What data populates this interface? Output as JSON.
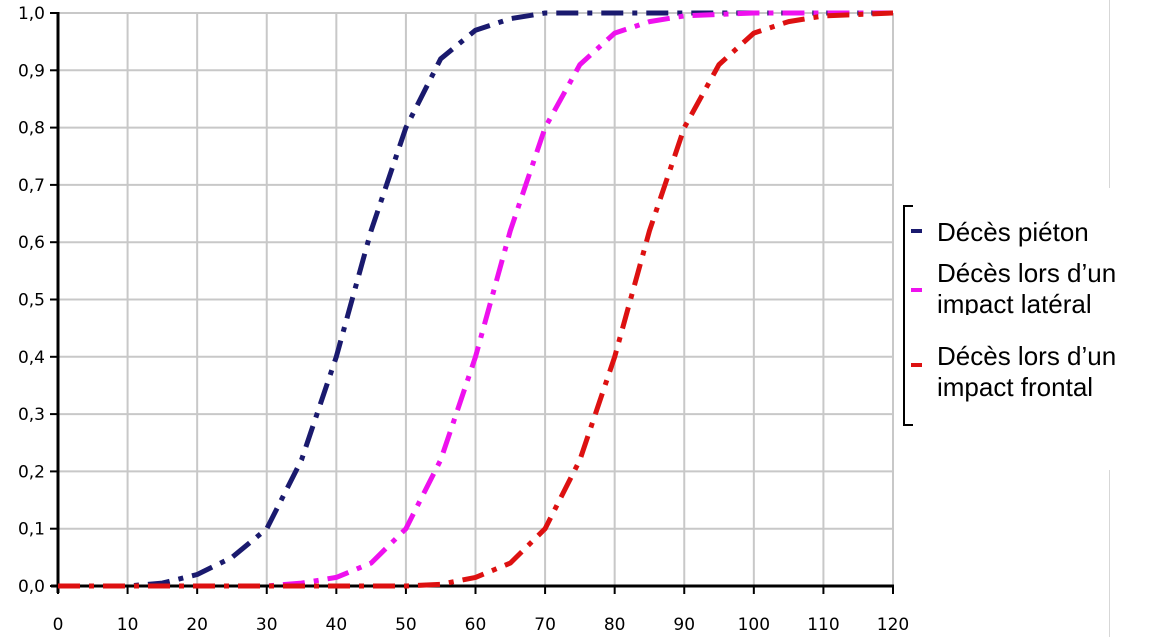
{
  "chart_data": {
    "type": "line",
    "title": "",
    "xlabel": "",
    "ylabel": "",
    "xlim": [
      0,
      120
    ],
    "ylim": [
      0,
      1
    ],
    "grid": true,
    "legend_position": "right",
    "x_ticks": [
      "0",
      "10",
      "20",
      "30",
      "40",
      "50",
      "60",
      "70",
      "80",
      "90",
      "100",
      "110",
      "120"
    ],
    "y_ticks": [
      "0,0",
      "0,1",
      "0,2",
      "0,3",
      "0,4",
      "0,5",
      "0,6",
      "0,7",
      "0,8",
      "0,9",
      "1,0"
    ],
    "series": [
      {
        "name": "Décès piéton",
        "name_lines": [
          "Décès piéton"
        ],
        "color": "#1a1a6e",
        "x": [
          0,
          10,
          15,
          20,
          25,
          30,
          35,
          40,
          45,
          50,
          55,
          60,
          65,
          70,
          80,
          90,
          100,
          110,
          120
        ],
        "y": [
          0.0,
          0.0,
          0.005,
          0.02,
          0.05,
          0.1,
          0.22,
          0.4,
          0.62,
          0.8,
          0.92,
          0.97,
          0.99,
          1.0,
          1.0,
          1.0,
          1.0,
          1.0,
          1.0
        ]
      },
      {
        "name": "Décès lors d’un impact latéral",
        "name_lines": [
          "Décès lors d’un",
          "impact latéral"
        ],
        "color": "#ee11ee",
        "x": [
          0,
          10,
          20,
          30,
          35,
          40,
          45,
          50,
          55,
          60,
          65,
          70,
          75,
          80,
          85,
          90,
          100,
          110,
          120
        ],
        "y": [
          0.0,
          0.0,
          0.0,
          0.0,
          0.005,
          0.015,
          0.04,
          0.1,
          0.22,
          0.4,
          0.62,
          0.8,
          0.91,
          0.965,
          0.985,
          0.995,
          1.0,
          1.0,
          1.0
        ]
      },
      {
        "name": "Décès lors d’un impact frontal",
        "name_lines": [
          "Décès lors d’un",
          "impact frontal"
        ],
        "color": "#dd1111",
        "x": [
          0,
          10,
          20,
          30,
          40,
          50,
          55,
          60,
          65,
          70,
          75,
          80,
          85,
          90,
          95,
          100,
          105,
          110,
          120
        ],
        "y": [
          0.0,
          0.0,
          0.0,
          0.0,
          0.0,
          0.0,
          0.003,
          0.015,
          0.04,
          0.1,
          0.22,
          0.4,
          0.62,
          0.8,
          0.91,
          0.965,
          0.985,
          0.995,
          1.0
        ]
      }
    ]
  }
}
